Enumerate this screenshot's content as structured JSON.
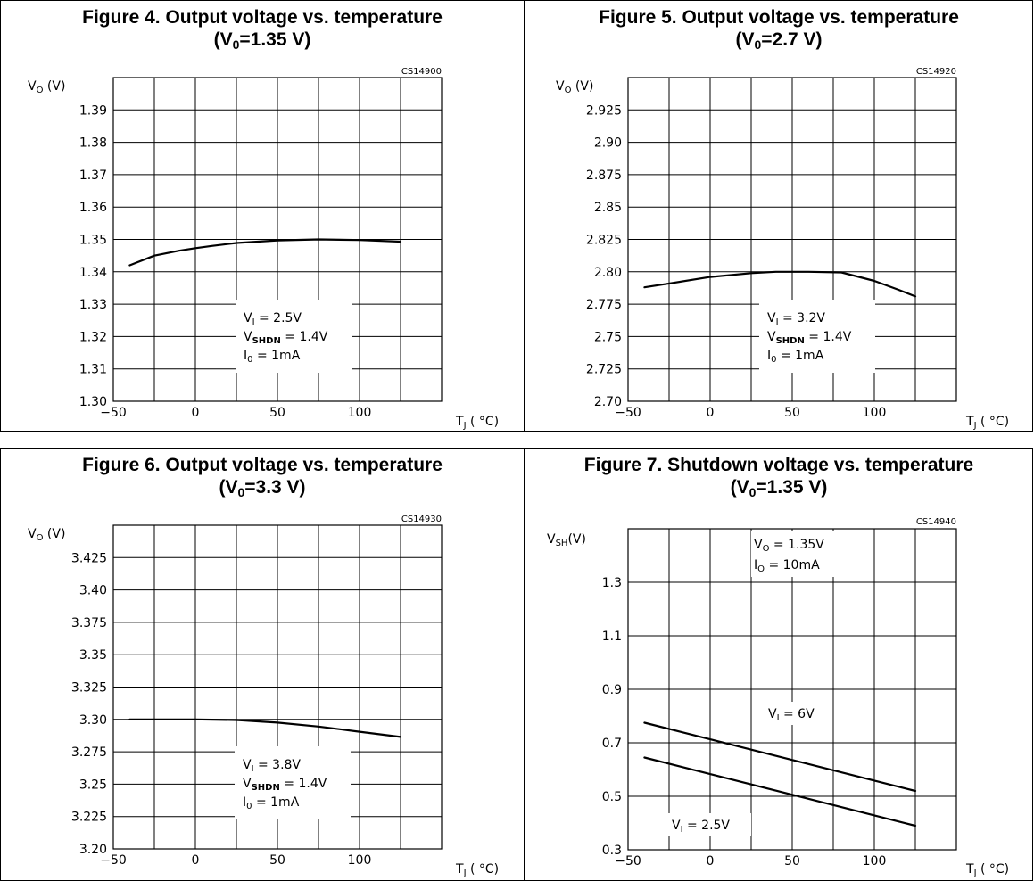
{
  "chart_data": [
    {
      "type": "line",
      "title_main": "Figure 4. Output voltage vs. temperature",
      "title_sub_pre": "(V",
      "title_sub_sub": "0",
      "title_sub_post": "=1.35 V)",
      "code": "CS14900",
      "ylabel": "V₀ (V)",
      "xlabel": "TJ ( °C)",
      "xlim": [
        -50,
        150
      ],
      "ylim": [
        1.3,
        1.4
      ],
      "xticks": [
        -50,
        0,
        50,
        100
      ],
      "xtick_labels": [
        "-50",
        "0",
        "50",
        "100"
      ],
      "yticks": [
        1.3,
        1.31,
        1.32,
        1.33,
        1.34,
        1.35,
        1.36,
        1.37,
        1.38,
        1.39
      ],
      "ytick_labels": [
        "1.30",
        "1.31",
        "1.32",
        "1.33",
        "1.34",
        "1.35",
        "1.36",
        "1.37",
        "1.38",
        "1.39"
      ],
      "grid": true,
      "series": [
        {
          "x": [
            -40,
            -25,
            -10,
            0,
            10,
            25,
            50,
            75,
            100,
            125
          ],
          "y": [
            1.342,
            1.345,
            1.3465,
            1.3473,
            1.348,
            1.3489,
            1.3497,
            1.35,
            1.3498,
            1.3493
          ]
        }
      ],
      "annotations": [
        "VI = 2.5V",
        "VSHDN = 1.4V",
        "I0 = 1mA"
      ]
    },
    {
      "type": "line",
      "title_main": "Figure 5. Output voltage vs. temperature",
      "title_sub_pre": "(V",
      "title_sub_sub": "0",
      "title_sub_post": "=2.7 V)",
      "code": "CS14920",
      "ylabel": "V₀ (V)",
      "xlabel": "TJ ( °C)",
      "xlim": [
        -50,
        150
      ],
      "ylim": [
        2.7,
        2.95
      ],
      "xticks": [
        -50,
        0,
        50,
        100
      ],
      "xtick_labels": [
        "-50",
        "0",
        "50",
        "100"
      ],
      "yticks": [
        2.7,
        2.725,
        2.75,
        2.775,
        2.8,
        2.825,
        2.85,
        2.875,
        2.9,
        2.925
      ],
      "ytick_labels": [
        "2.70",
        "2.725",
        "2.75",
        "2.775",
        "2.80",
        "2.825",
        "2.85",
        "2.875",
        "2.90",
        "2.925"
      ],
      "grid": true,
      "series": [
        {
          "x": [
            -40,
            -25,
            0,
            25,
            40,
            60,
            80,
            100,
            115,
            125
          ],
          "y": [
            2.788,
            2.791,
            2.796,
            2.799,
            2.8,
            2.8,
            2.7995,
            2.793,
            2.786,
            2.781
          ]
        }
      ],
      "annotations": [
        "VI = 3.2V",
        "VSHDN = 1.4V",
        "I0 = 1mA"
      ]
    },
    {
      "type": "line",
      "title_main": "Figure 6. Output voltage vs. temperature",
      "title_sub_pre": "(V",
      "title_sub_sub": "0",
      "title_sub_post": "=3.3 V)",
      "code": "CS14930",
      "ylabel": "V₀ (V)",
      "xlabel": "TJ ( °C)",
      "xlim": [
        -50,
        150
      ],
      "ylim": [
        3.2,
        3.45
      ],
      "xticks": [
        -50,
        0,
        50,
        100
      ],
      "xtick_labels": [
        "-50",
        "0",
        "50",
        "100"
      ],
      "yticks": [
        3.2,
        3.225,
        3.25,
        3.275,
        3.3,
        3.325,
        3.35,
        3.375,
        3.4,
        3.425
      ],
      "ytick_labels": [
        "3.20",
        "3.225",
        "3.25",
        "3.275",
        "3.30",
        "3.325",
        "3.35",
        "3.375",
        "3.40",
        "3.425"
      ],
      "grid": true,
      "series": [
        {
          "x": [
            -40,
            -25,
            0,
            25,
            50,
            75,
            100,
            125
          ],
          "y": [
            3.3,
            3.3,
            3.3,
            3.2995,
            3.2975,
            3.2945,
            3.2905,
            3.2865
          ]
        }
      ],
      "annotations": [
        "VI = 3.8V",
        "VSHDN = 1.4V",
        "I0 = 1mA"
      ]
    },
    {
      "type": "line",
      "title_main": "Figure 7. Shutdown voltage vs. temperature",
      "title_sub_pre": "(V",
      "title_sub_sub": "0",
      "title_sub_post": "=1.35 V)",
      "code": "CS14940",
      "ylabel": "VSH(V)",
      "xlabel": "TJ ( °C)",
      "xlim": [
        -50,
        150
      ],
      "ylim": [
        0.3,
        1.5
      ],
      "xticks": [
        -50,
        0,
        50,
        100
      ],
      "xtick_labels": [
        "-50",
        "0",
        "50",
        "100"
      ],
      "yticks": [
        0.3,
        0.5,
        0.7,
        0.9,
        1.1,
        1.3
      ],
      "ytick_labels": [
        "0.3",
        "0.5",
        "0.7",
        "0.9",
        "1.1",
        "1.3"
      ],
      "grid": true,
      "series": [
        {
          "name": "VI = 6V",
          "x": [
            -40,
            125
          ],
          "y": [
            0.775,
            0.52
          ]
        },
        {
          "name": "VI = 2.5V",
          "x": [
            -40,
            125
          ],
          "y": [
            0.645,
            0.39
          ]
        }
      ],
      "annotations": [
        "V0 = 1.35V",
        "I0 = 10mA",
        "VI = 6V",
        "VI = 2.5V"
      ]
    }
  ]
}
